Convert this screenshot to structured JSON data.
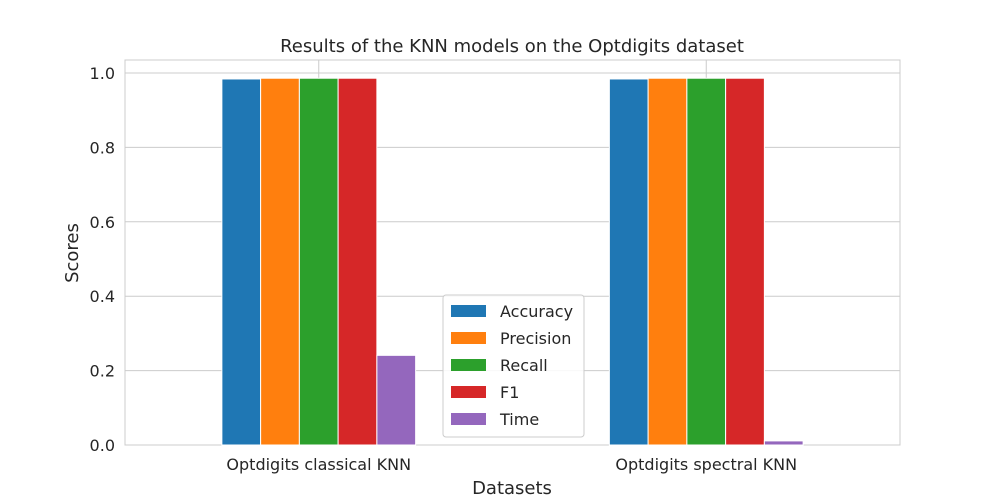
{
  "chart_data": {
    "type": "bar",
    "title": "Results of the KNN models on the Optdigits dataset",
    "xlabel": "Datasets",
    "ylabel": "Scores",
    "categories": [
      "Optdigits classical KNN",
      "Optdigits spectral KNN"
    ],
    "series": [
      {
        "name": "Accuracy",
        "color": "#1f77b4",
        "values": [
          0.984,
          0.984
        ]
      },
      {
        "name": "Precision",
        "color": "#ff7f0e",
        "values": [
          0.986,
          0.986
        ]
      },
      {
        "name": "Recall",
        "color": "#2ca02c",
        "values": [
          0.986,
          0.986
        ]
      },
      {
        "name": "F1",
        "color": "#d62728",
        "values": [
          0.986,
          0.986
        ]
      },
      {
        "name": "Time",
        "color": "#9467bd",
        "values": [
          0.241,
          0.011
        ]
      }
    ],
    "yticks": [
      "0.0",
      "0.2",
      "0.4",
      "0.6",
      "0.8",
      "1.0"
    ],
    "ylim": [
      0,
      1.035
    ],
    "grid": true,
    "legend_position": "lower-center"
  }
}
